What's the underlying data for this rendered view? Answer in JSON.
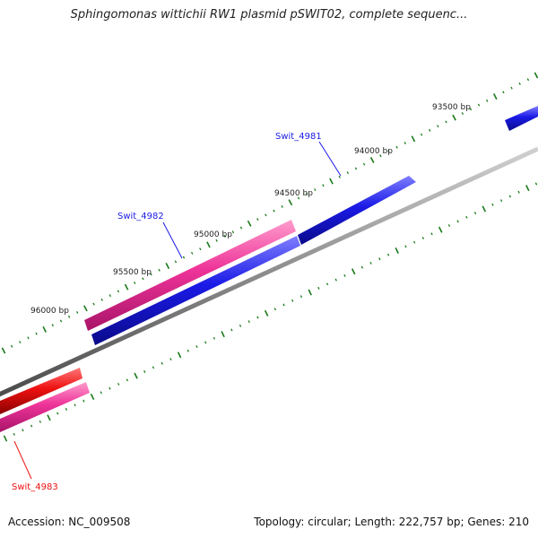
{
  "title": "Sphingomonas wittichii RW1 plasmid pSWIT02, complete sequenc...",
  "footer": {
    "accession": "Accession: NC_009508",
    "topology": "Topology: circular; Length: 222,757 bp; Genes: 210"
  },
  "ruler_labels": [
    "93500 bp",
    "94000 bp",
    "94500 bp",
    "95000 bp",
    "95500 bp",
    "96000 bp"
  ],
  "colors": {
    "backbone": "#8c8c8c",
    "forward_cds": "#ee3399",
    "reverse_cds": "#1a1ae6",
    "highlight_cds": "#ee1111",
    "ticks": "#1a7a1a"
  },
  "features": [
    {
      "label": "",
      "color": "blue"
    },
    {
      "label": "Swit_4981",
      "color": "blue"
    },
    {
      "label": "Swit_4982",
      "color": "pink"
    },
    {
      "label": "Swit_4983",
      "color": "pink"
    },
    {
      "label": "",
      "color": "red"
    }
  ]
}
